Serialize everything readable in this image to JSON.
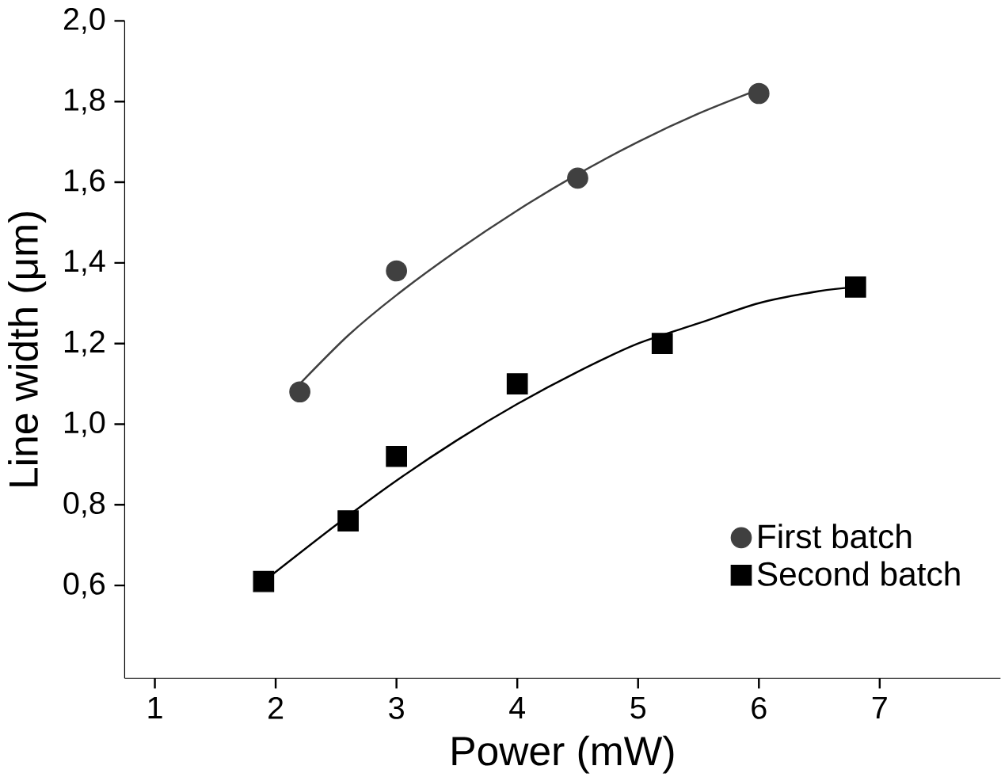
{
  "chart_data": {
    "type": "scatter",
    "xlabel": "Power (mW)",
    "ylabel": "Line width (μm)",
    "xlim": [
      0.75,
      8
    ],
    "ylim": [
      0.37,
      2.0
    ],
    "xticks": [
      1,
      2,
      3,
      4,
      5,
      6,
      7
    ],
    "yticks": [
      {
        "value": 0.6,
        "label": "0,6"
      },
      {
        "value": 0.8,
        "label": "0,8"
      },
      {
        "value": 1.0,
        "label": "1,0"
      },
      {
        "value": 1.2,
        "label": "1,2"
      },
      {
        "value": 1.4,
        "label": "1,4"
      },
      {
        "value": 1.6,
        "label": "1,6"
      },
      {
        "value": 1.8,
        "label": "1,8"
      },
      {
        "value": 2.0,
        "label": "2,0"
      }
    ],
    "legend": "bottom right",
    "grid": false,
    "series": [
      {
        "name": "First batch",
        "color": "#404040",
        "marker": "circle",
        "x": [
          2.2,
          3,
          4.5,
          6
        ],
        "values": [
          1.08,
          1.38,
          1.61,
          1.82
        ]
      },
      {
        "name": "Second batch",
        "color": "#000000",
        "marker": "square",
        "x": [
          1.9,
          2.6,
          3,
          4,
          5.2,
          6.8
        ],
        "values": [
          0.61,
          0.76,
          0.92,
          1.1,
          1.2,
          1.34
        ]
      },
      {
        "type": "line",
        "color": "#404040",
        "x": [
          2.2,
          2.6,
          3,
          3.5,
          4,
          4.5,
          5,
          5.5,
          6
        ],
        "values": [
          1.1,
          1.22,
          1.32,
          1.43,
          1.53,
          1.62,
          1.7,
          1.77,
          1.83
        ]
      },
      {
        "type": "line",
        "color": "#000000",
        "x": [
          1.9,
          2.5,
          3,
          3.5,
          4,
          4.5,
          5,
          5.5,
          6,
          6.5,
          6.8
        ],
        "values": [
          0.61,
          0.75,
          0.86,
          0.96,
          1.05,
          1.13,
          1.2,
          1.25,
          1.3,
          1.33,
          1.34
        ]
      }
    ]
  }
}
